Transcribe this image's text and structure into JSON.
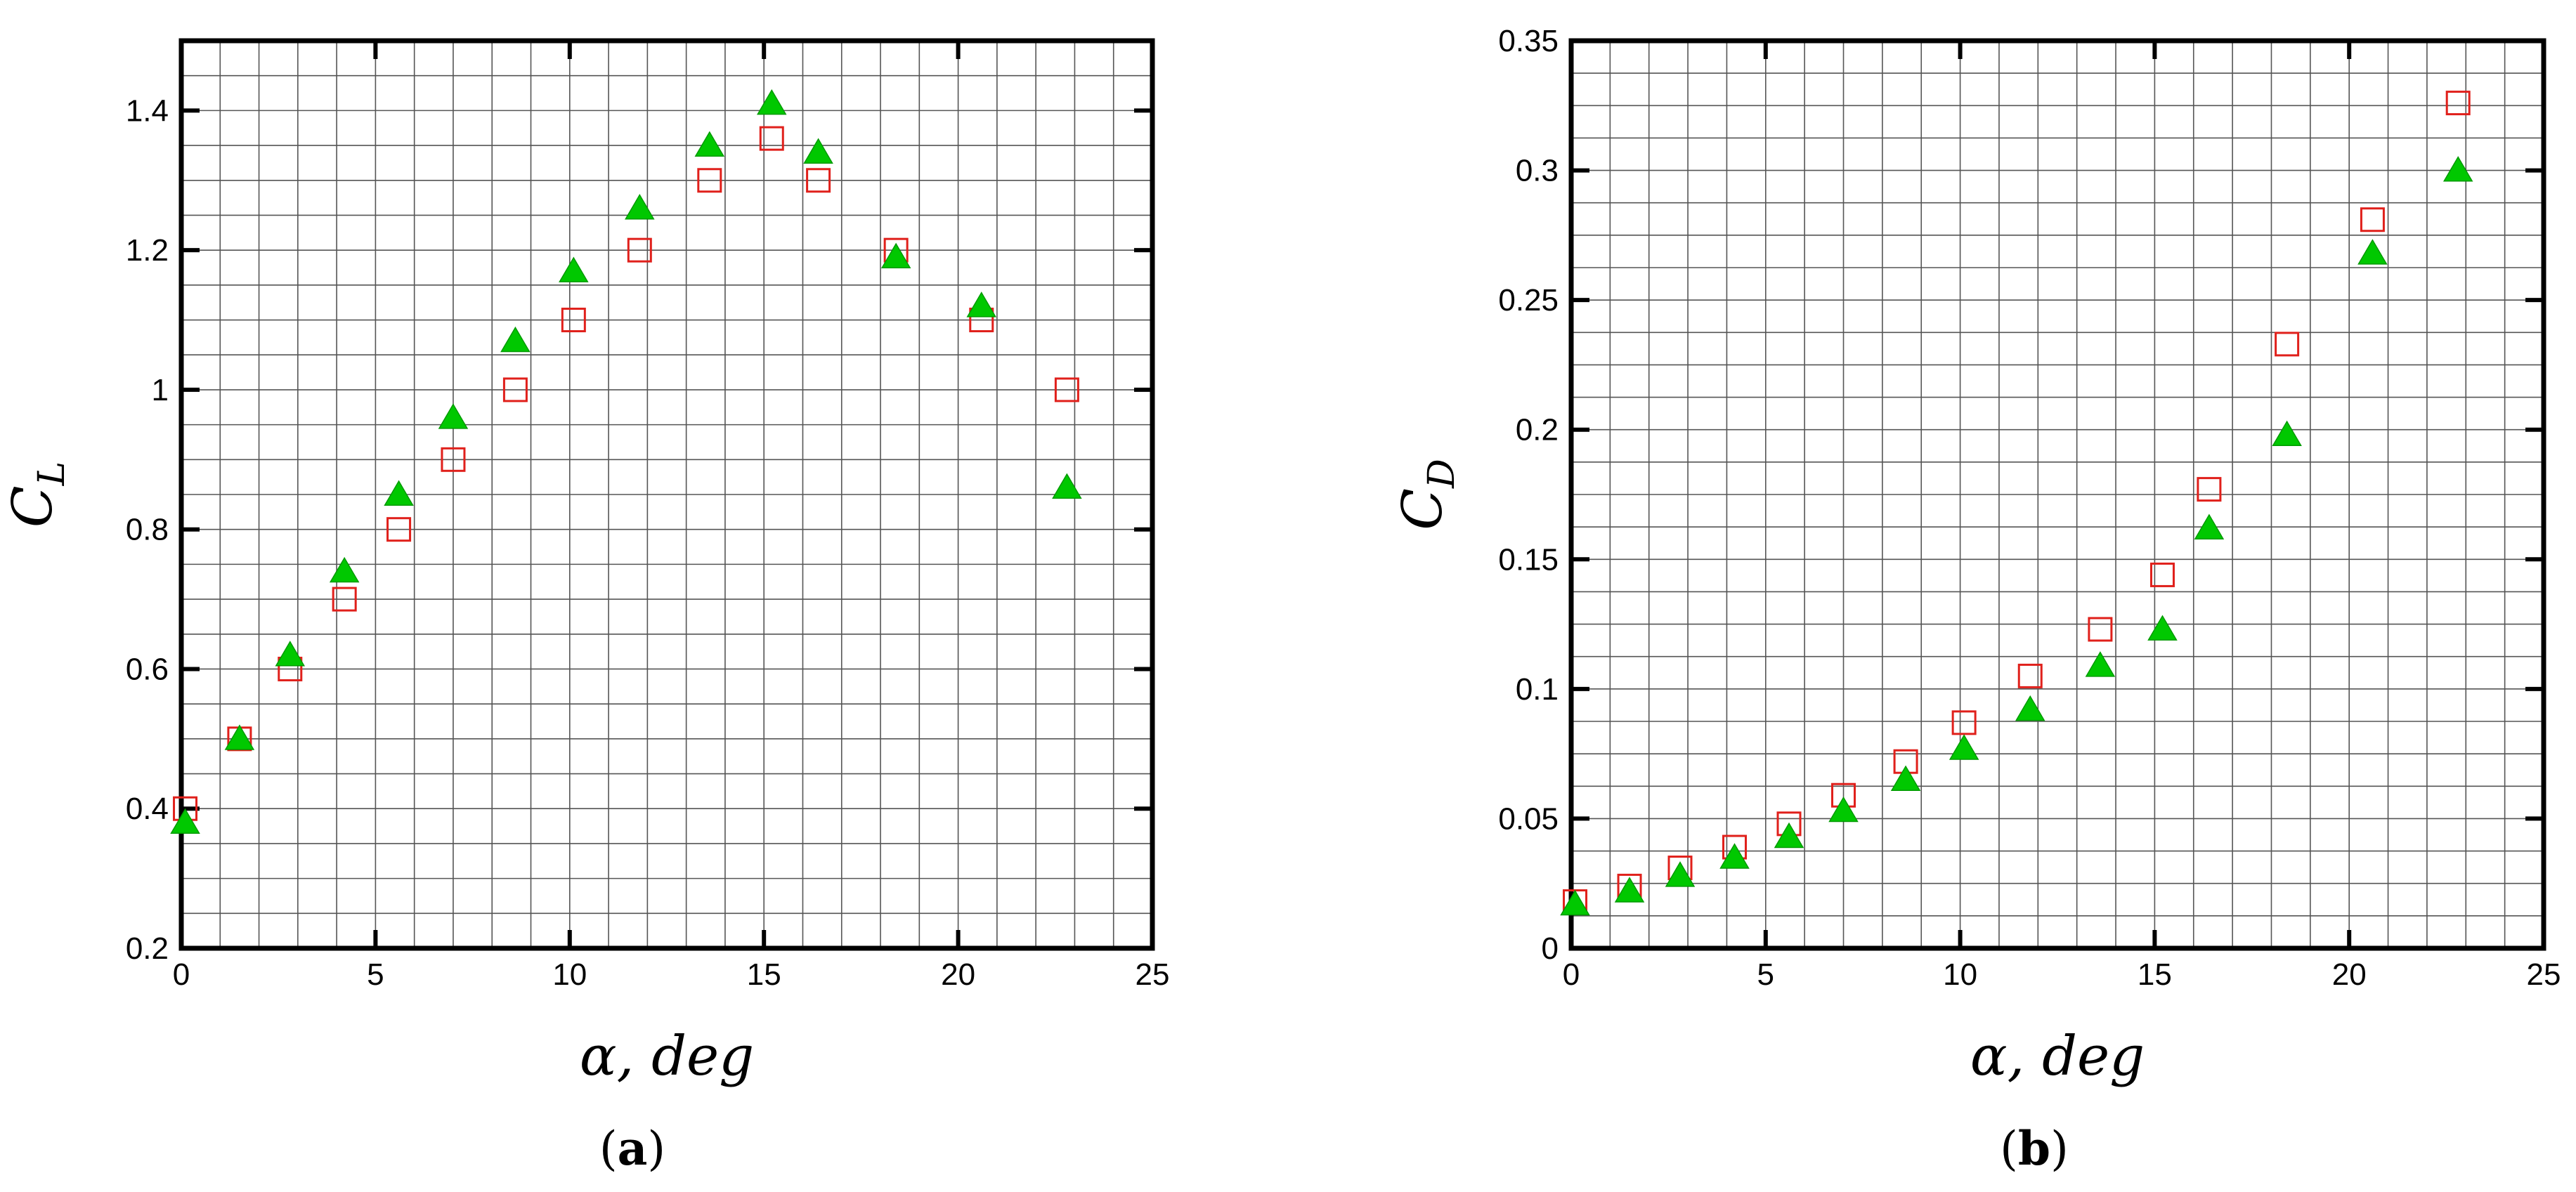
{
  "chart_data": [
    {
      "type": "scatter",
      "panel_label": "(a)",
      "xlabel": "α, deg",
      "ylabel_main": "C",
      "ylabel_sub": "L",
      "xlim": [
        0,
        25
      ],
      "ylim": [
        0.2,
        1.5
      ],
      "xticks": [
        0,
        5,
        10,
        15,
        20,
        25
      ],
      "xtick_labels": [
        "0",
        "5",
        "10",
        "15",
        "20",
        "25"
      ],
      "yticks": [
        0.2,
        0.4,
        0.6,
        0.8,
        1.0,
        1.2,
        1.4
      ],
      "ytick_labels": [
        "0.2",
        "0.4",
        "0.6",
        "0.8",
        "1",
        "1.2",
        "1.4"
      ],
      "grid": true,
      "series": [
        {
          "marker": "square-open",
          "color": "#e0201b",
          "x": [
            0.1,
            1.5,
            2.8,
            4.2,
            5.6,
            7.0,
            8.6,
            10.1,
            11.8,
            13.6,
            15.2,
            16.4,
            18.4,
            20.6,
            22.8
          ],
          "y": [
            0.4,
            0.5,
            0.6,
            0.7,
            0.8,
            0.9,
            1.0,
            1.1,
            1.2,
            1.3,
            1.36,
            1.3,
            1.2,
            1.1,
            1.0
          ]
        },
        {
          "marker": "triangle-filled",
          "color": "#00c800",
          "x": [
            0.1,
            1.5,
            2.8,
            4.2,
            5.6,
            7.0,
            8.6,
            10.1,
            11.8,
            13.6,
            15.2,
            16.4,
            18.4,
            20.6,
            22.8
          ],
          "y": [
            0.38,
            0.5,
            0.62,
            0.74,
            0.85,
            0.96,
            1.07,
            1.17,
            1.26,
            1.35,
            1.41,
            1.34,
            1.19,
            1.12,
            0.86
          ]
        }
      ]
    },
    {
      "type": "scatter",
      "panel_label": "(b)",
      "xlabel": "α, deg",
      "ylabel_main": "C",
      "ylabel_sub": "D",
      "xlim": [
        0,
        25
      ],
      "ylim": [
        0,
        0.35
      ],
      "xticks": [
        0,
        5,
        10,
        15,
        20,
        25
      ],
      "xtick_labels": [
        "0",
        "5",
        "10",
        "15",
        "20",
        "25"
      ],
      "yticks": [
        0,
        0.05,
        0.1,
        0.15,
        0.2,
        0.25,
        0.3,
        0.35
      ],
      "ytick_labels": [
        "0",
        "0.05",
        "0.1",
        "0.15",
        "0.2",
        "0.25",
        "0.3",
        "0.35"
      ],
      "grid": true,
      "series": [
        {
          "marker": "square-open",
          "color": "#e0201b",
          "x": [
            0.1,
            1.5,
            2.8,
            4.2,
            5.6,
            7.0,
            8.6,
            10.1,
            11.8,
            13.6,
            15.2,
            16.4,
            18.4,
            20.6,
            22.8
          ],
          "y": [
            0.018,
            0.024,
            0.031,
            0.039,
            0.048,
            0.059,
            0.072,
            0.087,
            0.105,
            0.123,
            0.144,
            0.177,
            0.233,
            0.281,
            0.326
          ]
        },
        {
          "marker": "triangle-filled",
          "color": "#00c800",
          "x": [
            0.1,
            1.5,
            2.8,
            4.2,
            5.6,
            7.0,
            8.6,
            10.1,
            11.8,
            13.6,
            15.2,
            16.4,
            18.4,
            20.6,
            22.8
          ],
          "y": [
            0.017,
            0.022,
            0.028,
            0.035,
            0.043,
            0.053,
            0.065,
            0.077,
            0.092,
            0.109,
            0.123,
            0.162,
            0.198,
            0.268,
            0.3
          ]
        }
      ]
    }
  ]
}
